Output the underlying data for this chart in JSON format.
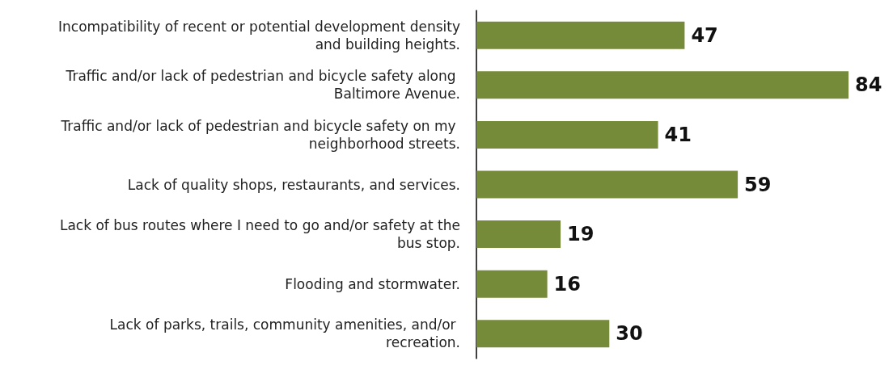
{
  "chart_data": {
    "type": "bar",
    "orientation": "horizontal",
    "data_labels": true,
    "categories": [
      "Incompatibility of recent or potential development density and building heights.",
      "Traffic and/or lack of pedestrian and bicycle safety along Baltimore Avenue.",
      "Traffic and/or lack of pedestrian and bicycle safety on my neighborhood streets.",
      "Lack of quality shops, restaurants, and services.",
      "Lack of bus routes where I need to go and/or safety at the bus stop.",
      "Flooding and stormwater.",
      "Lack of parks, trails, community amenities, and/or recreation."
    ],
    "values": [
      47,
      84,
      41,
      59,
      19,
      16,
      30
    ],
    "color": "#768b3a"
  }
}
